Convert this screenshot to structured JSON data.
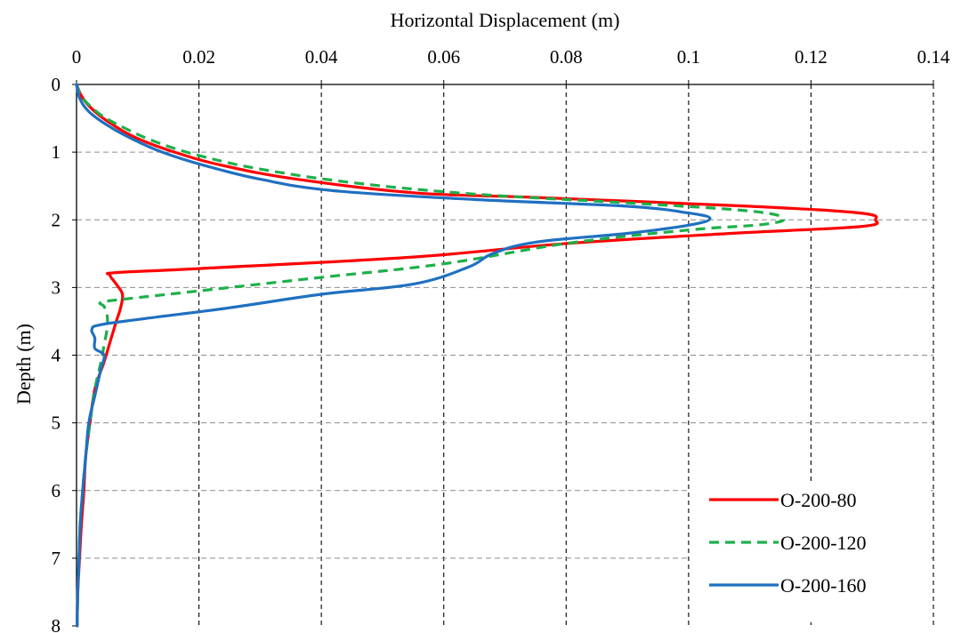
{
  "chart_data": {
    "type": "line",
    "title": "",
    "xlabel": "Horizontal Displacement (m)",
    "ylabel": "Depth (m)",
    "xlim": [
      0,
      0.14
    ],
    "ylim": [
      0,
      8
    ],
    "x_axis_position": "top",
    "y_axis_inverted": true,
    "x_ticks": [
      "0",
      "0.02",
      "0.04",
      "0.06",
      "0.08",
      "0.1",
      "0.12",
      "0.14"
    ],
    "y_ticks": [
      "0",
      "1",
      "2",
      "3",
      "4",
      "5",
      "6",
      "7",
      "8"
    ],
    "grid": true,
    "legend_position": "bottom-right",
    "series": [
      {
        "name": "O-200-80",
        "color": "#ff0000",
        "dash": "solid",
        "points": [
          [
            0.0,
            0.0
          ],
          [
            0.001,
            0.2
          ],
          [
            0.003,
            0.4
          ],
          [
            0.006,
            0.6
          ],
          [
            0.01,
            0.8
          ],
          [
            0.016,
            1.0
          ],
          [
            0.024,
            1.2
          ],
          [
            0.036,
            1.4
          ],
          [
            0.055,
            1.6
          ],
          [
            0.075,
            1.67
          ],
          [
            0.11,
            1.8
          ],
          [
            0.128,
            1.9
          ],
          [
            0.1305,
            2.0
          ],
          [
            0.128,
            2.1
          ],
          [
            0.107,
            2.2
          ],
          [
            0.08,
            2.35
          ],
          [
            0.055,
            2.55
          ],
          [
            0.02,
            2.72
          ],
          [
            0.0065,
            2.78
          ],
          [
            0.0055,
            2.82
          ],
          [
            0.0065,
            2.95
          ],
          [
            0.0075,
            3.1
          ],
          [
            0.0072,
            3.3
          ],
          [
            0.0065,
            3.5
          ],
          [
            0.0055,
            3.8
          ],
          [
            0.0045,
            4.1
          ],
          [
            0.003,
            4.5
          ],
          [
            0.0022,
            5.0
          ],
          [
            0.0015,
            5.5
          ],
          [
            0.0012,
            6.0
          ],
          [
            0.0008,
            6.5
          ],
          [
            0.0005,
            7.0
          ],
          [
            0.0002,
            7.5
          ],
          [
            0.0001,
            8.0
          ]
        ]
      },
      {
        "name": "O-200-120",
        "color": "#1db04a",
        "dash": "dashed",
        "points": [
          [
            0.0,
            0.0
          ],
          [
            0.001,
            0.2
          ],
          [
            0.004,
            0.45
          ],
          [
            0.008,
            0.65
          ],
          [
            0.013,
            0.85
          ],
          [
            0.02,
            1.05
          ],
          [
            0.03,
            1.25
          ],
          [
            0.045,
            1.45
          ],
          [
            0.065,
            1.62
          ],
          [
            0.09,
            1.75
          ],
          [
            0.11,
            1.87
          ],
          [
            0.1155,
            1.98
          ],
          [
            0.112,
            2.07
          ],
          [
            0.1,
            2.15
          ],
          [
            0.08,
            2.35
          ],
          [
            0.06,
            2.65
          ],
          [
            0.04,
            2.85
          ],
          [
            0.02,
            3.05
          ],
          [
            0.008,
            3.17
          ],
          [
            0.004,
            3.22
          ],
          [
            0.0045,
            3.28
          ],
          [
            0.005,
            3.4
          ],
          [
            0.005,
            3.6
          ],
          [
            0.0045,
            3.85
          ],
          [
            0.004,
            4.1
          ],
          [
            0.003,
            4.5
          ],
          [
            0.0022,
            5.0
          ],
          [
            0.0015,
            5.5
          ],
          [
            0.001,
            6.0
          ],
          [
            0.0006,
            6.5
          ],
          [
            0.0004,
            7.0
          ],
          [
            0.0002,
            7.5
          ],
          [
            0.0001,
            8.0
          ]
        ]
      },
      {
        "name": "O-200-160",
        "color": "#1f70c1",
        "dash": "solid",
        "points": [
          [
            0.0,
            0.0
          ],
          [
            0.0005,
            0.2
          ],
          [
            0.002,
            0.4
          ],
          [
            0.005,
            0.6
          ],
          [
            0.009,
            0.8
          ],
          [
            0.014,
            1.0
          ],
          [
            0.021,
            1.2
          ],
          [
            0.03,
            1.4
          ],
          [
            0.042,
            1.57
          ],
          [
            0.065,
            1.7
          ],
          [
            0.09,
            1.8
          ],
          [
            0.1,
            1.9
          ],
          [
            0.1035,
            1.98
          ],
          [
            0.1,
            2.08
          ],
          [
            0.09,
            2.2
          ],
          [
            0.075,
            2.33
          ],
          [
            0.068,
            2.5
          ],
          [
            0.064,
            2.7
          ],
          [
            0.055,
            2.95
          ],
          [
            0.04,
            3.1
          ],
          [
            0.025,
            3.3
          ],
          [
            0.012,
            3.45
          ],
          [
            0.004,
            3.55
          ],
          [
            0.0025,
            3.62
          ],
          [
            0.003,
            3.75
          ],
          [
            0.003,
            3.9
          ],
          [
            0.0045,
            4.0
          ],
          [
            0.004,
            4.2
          ],
          [
            0.003,
            4.6
          ],
          [
            0.002,
            5.0
          ],
          [
            0.0015,
            5.5
          ],
          [
            0.001,
            6.0
          ],
          [
            0.0006,
            6.5
          ],
          [
            0.0004,
            7.0
          ],
          [
            0.0002,
            7.5
          ],
          [
            0.0001,
            8.0
          ]
        ]
      }
    ]
  }
}
